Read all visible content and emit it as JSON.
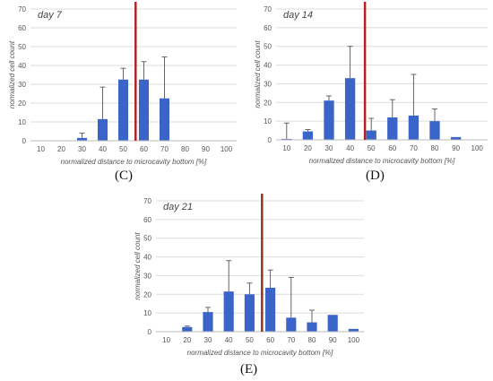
{
  "chart_data": [
    {
      "type": "bar",
      "panel": "(C)",
      "title": "day 7",
      "xlabel": "normalized distance to microcavity bottom [%]",
      "ylabel": "normalized cell count",
      "categories": [
        "10",
        "20",
        "30",
        "40",
        "50",
        "60",
        "70",
        "80",
        "90",
        "100"
      ],
      "values": [
        0,
        0,
        1.5,
        11.5,
        32.5,
        32.5,
        22.5,
        0,
        0,
        0
      ],
      "errors": [
        0,
        0,
        2.5,
        17,
        6,
        9.5,
        22,
        0,
        0,
        0
      ],
      "ylim": [
        0,
        70
      ],
      "yticks": [
        0,
        10,
        20,
        30,
        40,
        50,
        60,
        70
      ],
      "marker_line_x": 56,
      "grid": true,
      "bar_color": "#3a64c8",
      "marker_color": "#b22222"
    },
    {
      "type": "bar",
      "panel": "(D)",
      "title": "day 14",
      "xlabel": "normalized distance to microcavity bottom [%]",
      "ylabel": "normalized cell count",
      "categories": [
        "10",
        "20",
        "30",
        "40",
        "50",
        "60",
        "70",
        "80",
        "90",
        "100"
      ],
      "values": [
        0.5,
        4.5,
        21,
        33,
        5,
        12,
        13,
        10,
        1.5,
        0
      ],
      "errors": [
        8.5,
        1,
        2.5,
        17,
        6.5,
        9.5,
        22,
        6.5,
        0,
        0
      ],
      "ylim": [
        0,
        70
      ],
      "yticks": [
        0,
        10,
        20,
        30,
        40,
        50,
        60,
        70
      ],
      "marker_line_x": 47,
      "grid": true,
      "bar_color": "#3a64c8",
      "marker_color": "#b22222"
    },
    {
      "type": "bar",
      "panel": "(E)",
      "title": "day 21",
      "xlabel": "normalized distance to microcavity bottom [%]",
      "ylabel": "normalized cell count",
      "categories": [
        "10",
        "20",
        "30",
        "40",
        "50",
        "60",
        "70",
        "80",
        "90",
        "100"
      ],
      "values": [
        0,
        2.5,
        10.5,
        21.5,
        20,
        23.5,
        7.5,
        5,
        9,
        1.5
      ],
      "errors": [
        0,
        0.5,
        2.5,
        16.5,
        6,
        9.5,
        21.5,
        6.5,
        0,
        0
      ],
      "ylim": [
        0,
        70
      ],
      "yticks": [
        0,
        10,
        20,
        30,
        40,
        50,
        60,
        70
      ],
      "marker_line_x": 56,
      "grid": true,
      "bar_color": "#3a64c8",
      "marker_color": "#8b3a1a"
    }
  ]
}
